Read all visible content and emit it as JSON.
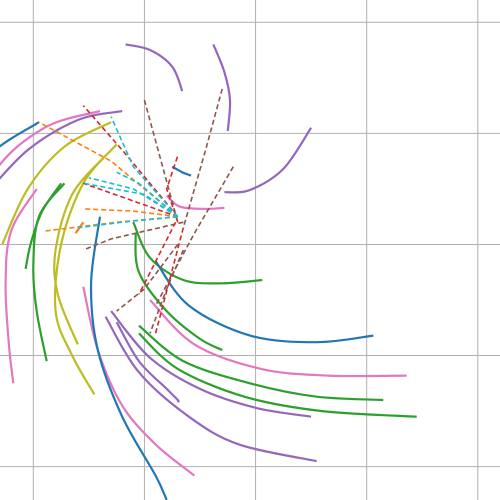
{
  "chart_data": {
    "type": "line",
    "title": "",
    "xlabel": "",
    "ylabel": "",
    "xlim": [
      -1.3,
      3.2
    ],
    "ylim": [
      -2.3,
      2.2
    ],
    "grid": true,
    "legend": "none",
    "x_ticks": [
      -1,
      0,
      1,
      2,
      3
    ],
    "y_ticks": [
      -2,
      -1,
      0,
      1,
      2
    ],
    "colors": {
      "blue": "#1f77b4",
      "orange": "#ff7f0e",
      "green": "#2ca02c",
      "red": "#d62728",
      "purple": "#9467bd",
      "brown": "#8c564b",
      "pink": "#e377c2",
      "olive": "#bcbd22",
      "cyan": "#17becf"
    },
    "arcs": [
      {
        "color": "purple",
        "points": [
          [
            0.62,
            1.8
          ],
          [
            0.72,
            1.55
          ],
          [
            0.77,
            1.3
          ],
          [
            0.75,
            1.02
          ]
        ]
      },
      {
        "color": "purple",
        "points": [
          [
            0.34,
            1.38
          ],
          [
            0.25,
            1.6
          ],
          [
            0.05,
            1.75
          ],
          [
            -0.17,
            1.8
          ]
        ]
      },
      {
        "color": "purple",
        "points": [
          [
            1.5,
            1.05
          ],
          [
            1.25,
            0.68
          ],
          [
            0.95,
            0.49
          ],
          [
            0.72,
            0.47
          ]
        ]
      },
      {
        "color": "blue",
        "points": [
          [
            0.42,
            0.62
          ],
          [
            0.34,
            0.65
          ],
          [
            0.25,
            0.7
          ]
        ]
      },
      {
        "color": "pink",
        "points": [
          [
            0.2,
            0.44
          ],
          [
            0.32,
            0.34
          ],
          [
            0.55,
            0.32
          ],
          [
            0.72,
            0.33
          ]
        ]
      },
      {
        "color": "green",
        "points": [
          [
            -0.1,
            0.2
          ],
          [
            0.05,
            -0.12
          ],
          [
            0.35,
            -0.32
          ],
          [
            0.7,
            -0.35
          ],
          [
            1.06,
            -0.32
          ]
        ]
      },
      {
        "color": "blue",
        "points": [
          [
            0.1,
            -0.15
          ],
          [
            0.4,
            -0.55
          ],
          [
            0.95,
            -0.82
          ],
          [
            1.55,
            -0.88
          ],
          [
            2.06,
            -0.82
          ]
        ]
      },
      {
        "color": "green",
        "points": [
          [
            -0.08,
            0.1
          ],
          [
            -0.05,
            -0.25
          ],
          [
            0.2,
            -0.6
          ],
          [
            0.5,
            -0.85
          ],
          [
            0.7,
            -0.95
          ]
        ]
      },
      {
        "color": "pink",
        "points": [
          [
            0.05,
            -0.5
          ],
          [
            0.45,
            -0.9
          ],
          [
            1.05,
            -1.12
          ],
          [
            1.65,
            -1.18
          ],
          [
            2.36,
            -1.18
          ]
        ]
      },
      {
        "color": "green",
        "points": [
          [
            -0.05,
            -0.73
          ],
          [
            0.35,
            -1.05
          ],
          [
            0.95,
            -1.25
          ],
          [
            1.55,
            -1.37
          ],
          [
            2.15,
            -1.4
          ]
        ]
      },
      {
        "color": "green",
        "points": [
          [
            -0.05,
            -0.8
          ],
          [
            0.3,
            -1.12
          ],
          [
            0.9,
            -1.37
          ],
          [
            1.6,
            -1.5
          ],
          [
            2.45,
            -1.55
          ]
        ]
      },
      {
        "color": "purple",
        "points": [
          [
            -0.3,
            -0.6
          ],
          [
            0.05,
            -1.02
          ],
          [
            0.5,
            -1.3
          ],
          [
            1.0,
            -1.47
          ],
          [
            1.5,
            -1.55
          ]
        ]
      },
      {
        "color": "purple",
        "points": [
          [
            -0.35,
            -0.65
          ],
          [
            -0.05,
            -1.15
          ],
          [
            0.4,
            -1.55
          ],
          [
            0.85,
            -1.8
          ],
          [
            1.55,
            -1.95
          ]
        ]
      },
      {
        "color": "purple",
        "points": [
          [
            -0.25,
            -0.7
          ],
          [
            -0.05,
            -1.05
          ],
          [
            0.2,
            -1.3
          ],
          [
            0.3,
            -1.4
          ],
          [
            0.3,
            -1.42
          ]
        ]
      },
      {
        "color": "pink",
        "points": [
          [
            -0.55,
            -0.38
          ],
          [
            -0.42,
            -0.95
          ],
          [
            -0.2,
            -1.45
          ],
          [
            0.1,
            -1.8
          ],
          [
            0.45,
            -2.08
          ]
        ]
      },
      {
        "color": "blue",
        "points": [
          [
            -0.4,
            0.25
          ],
          [
            -0.48,
            -0.35
          ],
          [
            -0.42,
            -0.95
          ],
          [
            -0.2,
            -1.55
          ],
          [
            0.1,
            -2.08
          ],
          [
            0.2,
            -2.3
          ]
        ]
      },
      {
        "color": "olive",
        "points": [
          [
            -0.25,
            0.9
          ],
          [
            -0.55,
            0.55
          ],
          [
            -0.75,
            0.0
          ],
          [
            -0.8,
            -0.6
          ],
          [
            -0.65,
            -1.0
          ],
          [
            -0.45,
            -1.35
          ]
        ]
      },
      {
        "color": "olive",
        "points": [
          [
            -0.35,
            0.8
          ],
          [
            -0.65,
            0.45
          ],
          [
            -0.8,
            -0.05
          ],
          [
            -0.78,
            -0.45
          ],
          [
            -0.6,
            -0.9
          ]
        ]
      },
      {
        "color": "green",
        "points": [
          [
            -0.72,
            0.55
          ],
          [
            -0.95,
            0.25
          ],
          [
            -1.0,
            -0.2
          ],
          [
            -0.97,
            -0.6
          ],
          [
            -0.88,
            -1.05
          ]
        ]
      },
      {
        "color": "green",
        "points": [
          [
            -0.75,
            0.55
          ],
          [
            -0.92,
            0.3
          ],
          [
            -1.02,
            0.02
          ],
          [
            -1.07,
            -0.22
          ]
        ]
      },
      {
        "color": "pink",
        "points": [
          [
            -0.97,
            0.5
          ],
          [
            -1.2,
            0.12
          ],
          [
            -1.25,
            -0.35
          ],
          [
            -1.22,
            -0.9
          ],
          [
            -1.18,
            -1.25
          ]
        ]
      },
      {
        "color": "olive",
        "points": [
          [
            -0.3,
            1.1
          ],
          [
            -0.72,
            0.88
          ],
          [
            -1.05,
            0.5
          ],
          [
            -1.28,
            0.0
          ]
        ]
      },
      {
        "color": "purple",
        "points": [
          [
            -0.2,
            1.2
          ],
          [
            -0.6,
            1.12
          ],
          [
            -1.05,
            0.85
          ],
          [
            -1.43,
            0.45
          ]
        ]
      },
      {
        "color": "pink",
        "points": [
          [
            -0.4,
            1.2
          ],
          [
            -0.9,
            1.05
          ],
          [
            -1.35,
            0.65
          ],
          [
            -1.65,
            -0.08
          ]
        ]
      },
      {
        "color": "blue",
        "points": [
          [
            -0.95,
            1.1
          ],
          [
            -1.4,
            0.8
          ],
          [
            -1.75,
            0.3
          ],
          [
            -1.98,
            -0.4
          ]
        ]
      },
      {
        "color": "orange",
        "points": [
          [
            -0.55,
            0.2
          ],
          [
            -0.62,
            0.1
          ]
        ]
      }
    ],
    "spokes": [
      {
        "color": "brown",
        "points": [
          [
            0.8,
            0.7
          ],
          [
            0.45,
            0.1
          ],
          [
            0.1,
            -0.55
          ]
        ]
      },
      {
        "color": "brown",
        "points": [
          [
            0.7,
            1.4
          ],
          [
            0.55,
            0.85
          ],
          [
            0.35,
            0.15
          ]
        ]
      },
      {
        "color": "brown",
        "points": [
          [
            0.3,
            0.0
          ],
          [
            0.0,
            -0.4
          ],
          [
            -0.25,
            -0.6
          ]
        ]
      },
      {
        "color": "brown",
        "points": [
          [
            0.35,
            -0.05
          ],
          [
            0.2,
            -0.4
          ],
          [
            0.05,
            -0.8
          ]
        ]
      },
      {
        "color": "brown",
        "points": [
          [
            0.35,
            0.2
          ],
          [
            -0.3,
            0.05
          ],
          [
            -0.55,
            -0.05
          ]
        ]
      },
      {
        "color": "brown",
        "points": [
          [
            0.0,
            1.3
          ],
          [
            0.15,
            0.75
          ],
          [
            0.3,
            0.2
          ]
        ]
      },
      {
        "color": "red",
        "points": [
          [
            0.35,
            0.15
          ],
          [
            0.1,
            -0.8
          ]
        ]
      },
      {
        "color": "red",
        "points": [
          [
            0.3,
            0.25
          ],
          [
            -0.55,
            0.55
          ]
        ]
      },
      {
        "color": "red",
        "points": [
          [
            0.3,
            0.25
          ],
          [
            -0.2,
            0.85
          ],
          [
            -0.55,
            1.25
          ]
        ]
      },
      {
        "color": "red",
        "points": [
          [
            0.3,
            0.2
          ],
          [
            0.2,
            0.5
          ],
          [
            0.3,
            0.8
          ]
        ]
      },
      {
        "color": "red",
        "points": [
          [
            0.28,
            0.2
          ],
          [
            -0.05,
            -0.45
          ]
        ]
      },
      {
        "color": "orange",
        "points": [
          [
            0.3,
            0.25
          ],
          [
            -0.25,
            0.2
          ],
          [
            -0.9,
            0.12
          ]
        ]
      },
      {
        "color": "orange",
        "points": [
          [
            0.3,
            0.25
          ],
          [
            -0.3,
            0.75
          ],
          [
            -0.95,
            1.1
          ]
        ]
      },
      {
        "color": "orange",
        "points": [
          [
            0.3,
            0.25
          ],
          [
            -0.1,
            0.3
          ],
          [
            -0.55,
            0.32
          ]
        ]
      },
      {
        "color": "cyan",
        "points": [
          [
            0.3,
            0.25
          ],
          [
            -0.1,
            0.7
          ],
          [
            -0.3,
            1.15
          ]
        ]
      },
      {
        "color": "cyan",
        "points": [
          [
            0.3,
            0.25
          ],
          [
            -0.1,
            0.5
          ],
          [
            -0.5,
            0.6
          ]
        ]
      },
      {
        "color": "cyan",
        "points": [
          [
            0.3,
            0.25
          ],
          [
            0.0,
            0.45
          ],
          [
            -0.55,
            0.55
          ]
        ]
      },
      {
        "color": "cyan",
        "points": [
          [
            0.3,
            0.25
          ],
          [
            -0.2,
            0.2
          ],
          [
            -0.6,
            0.15
          ]
        ]
      },
      {
        "color": "cyan",
        "points": [
          [
            0.3,
            0.25
          ],
          [
            -0.05,
            0.55
          ],
          [
            -0.25,
            0.65
          ]
        ]
      }
    ]
  }
}
